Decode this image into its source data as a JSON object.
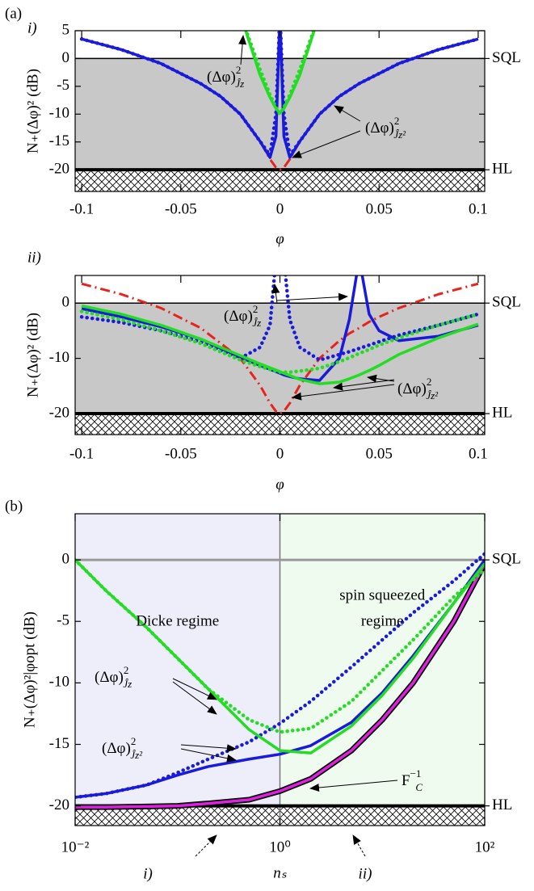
{
  "chart_data": [
    {
      "type": "line",
      "panel_label": "(a)",
      "subpanel_label": "i)",
      "x_label": "φ",
      "y_label": "N₊(Δφ)² (dB)",
      "xlim": [
        -0.1033,
        0.1033
      ],
      "ylim": [
        -23.9,
        5
      ],
      "xticks": [
        -0.1,
        -0.05,
        0,
        0.05,
        0.1
      ],
      "yticks": [
        5,
        0,
        -5,
        -10,
        -15,
        -20
      ],
      "fill_color": "#c8c8c8",
      "reference_lines": [
        {
          "label": "SQL",
          "value": 0,
          "color": "#000000"
        },
        {
          "label": "HL",
          "value": -20,
          "color": "#000000"
        }
      ],
      "x": [
        -0.1,
        -0.08,
        -0.06,
        -0.04,
        -0.03,
        -0.02,
        -0.01,
        -0.005,
        -0.002,
        0,
        0.002,
        0.005,
        0.01,
        0.02,
        0.03,
        0.04,
        0.06,
        0.08,
        0.1
      ],
      "series": [
        {
          "color": "#e8231e",
          "style": "dashdot",
          "values": [
            3.5,
            1.6,
            -0.9,
            -4.5,
            -6.8,
            -10,
            -14.9,
            -18.1,
            -19.6,
            -20,
            -19.6,
            -18.1,
            -14.9,
            -10,
            -6.8,
            -4.5,
            -0.9,
            1.6,
            3.5
          ]
        },
        {
          "color": "#1a1adc",
          "style": "solid",
          "values": [
            3.5,
            1.6,
            -0.9,
            -4.5,
            -6.8,
            -10,
            -14.9,
            -17.8,
            -14,
            8,
            -14,
            -17.8,
            -14.9,
            -10,
            -6.8,
            -4.5,
            -0.9,
            1.6,
            3.5
          ]
        },
        {
          "color": "#1a1adc",
          "style": "dotted",
          "values": [
            3.5,
            1.6,
            -0.9,
            -4.5,
            -6.8,
            -10,
            -14.9,
            -17.4,
            -10,
            8,
            -10,
            -17.4,
            -14.9,
            -10,
            -6.8,
            -4.5,
            -0.9,
            1.6,
            3.5
          ]
        },
        {
          "color": "#22dd22",
          "style": "solid",
          "values": [
            null,
            null,
            null,
            null,
            null,
            8,
            -3,
            -7,
            -9,
            -9.8,
            -9,
            -7,
            -3,
            8,
            null,
            null,
            null,
            null,
            null
          ]
        },
        {
          "color": "#22dd22",
          "style": "dotted",
          "values": [
            null,
            null,
            null,
            null,
            null,
            8,
            -2,
            -6.5,
            -8.8,
            -10,
            -8.8,
            -6.5,
            -2,
            8,
            null,
            null,
            null,
            null,
            null
          ]
        }
      ],
      "annotations": [
        {
          "base": "(Δφ)",
          "sup": "2",
          "sub": "Ĵz"
        },
        {
          "base": "(Δφ)",
          "sup": "2",
          "sub": "Ĵz²"
        }
      ]
    },
    {
      "type": "line",
      "subpanel_label": "ii)",
      "x_label": "φ",
      "y_label": "N₊(Δφ)² (dB)",
      "xlim": [
        -0.1033,
        0.1033
      ],
      "ylim": [
        -23.8,
        5
      ],
      "xticks": [
        -0.1,
        -0.05,
        0,
        0.05,
        0.1
      ],
      "yticks": [
        0,
        -10,
        -20
      ],
      "fill_color": "#c8c8c8",
      "reference_lines": [
        {
          "label": "SQL",
          "value": 0,
          "color": "#000000"
        },
        {
          "label": "HL",
          "value": -20,
          "color": "#000000"
        }
      ],
      "x": [
        -0.1,
        -0.08,
        -0.06,
        -0.04,
        -0.02,
        -0.01,
        -0.005,
        -0.002,
        0,
        0.002,
        0.005,
        0.01,
        0.02,
        0.03,
        0.035,
        0.04,
        0.045,
        0.05,
        0.06,
        0.08,
        0.1
      ],
      "series": [
        {
          "color": "#e8231e",
          "style": "dashdot",
          "values": [
            3.5,
            1.6,
            -0.9,
            -4.5,
            -10,
            -14.9,
            -18.1,
            -19.6,
            -20,
            -19.6,
            -18.1,
            -14.9,
            -10,
            -6.8,
            -5.5,
            -4.5,
            -3.4,
            -2.5,
            -0.9,
            1.6,
            3.5
          ]
        },
        {
          "color": "#1a1adc",
          "style": "solid",
          "values": [
            -1,
            -2.5,
            -4.3,
            -6.5,
            -9.8,
            -11.3,
            -12,
            -12.4,
            -12.7,
            -13,
            -13.3,
            -13.7,
            -14,
            -10,
            -3,
            8,
            -2,
            -5,
            -6.8,
            -6,
            -4
          ]
        },
        {
          "color": "#1a1adc",
          "style": "dotted",
          "values": [
            -2.5,
            -3.5,
            -5,
            -7,
            -10,
            -8,
            -4,
            8,
            null,
            8,
            -3,
            -8,
            -10.3,
            -9.3,
            -8.8,
            -8.2,
            -7.6,
            -7,
            -5.8,
            -4,
            -2
          ]
        },
        {
          "color": "#22dd22",
          "style": "solid",
          "values": [
            -0.5,
            -2,
            -4,
            -6.5,
            -9.5,
            -11,
            -11.7,
            -12.1,
            -12.4,
            -12.7,
            -13.1,
            -13.8,
            -14.6,
            -14.3,
            -13.7,
            -13,
            -12.2,
            -11.3,
            -9.3,
            -6.3,
            -3.8
          ]
        },
        {
          "color": "#22dd22",
          "style": "dotted",
          "values": [
            -1.5,
            -3,
            -5,
            -7.3,
            -10.3,
            -11.5,
            -12,
            -12.3,
            -12.5,
            -12.5,
            -12.5,
            -12.3,
            -11.8,
            -10.6,
            -9.9,
            -9.1,
            -8.4,
            -7.6,
            -6.3,
            -4,
            -2
          ]
        }
      ],
      "annotations": [
        {
          "base": "(Δφ)",
          "sup": "2",
          "sub": "Ĵz"
        },
        {
          "base": "(Δφ)",
          "sup": "2",
          "sub": "Ĵz²"
        }
      ]
    },
    {
      "type": "line",
      "panel_label": "(b)",
      "x_label": "nₛ",
      "y_label": "N₊(Δφ)²|φopt (dB)",
      "log_x": true,
      "xlim": [
        0.01,
        100
      ],
      "ylim": [
        -21.6,
        3.75
      ],
      "xticks": [
        {
          "value": 0.01,
          "label": "10⁻²"
        },
        {
          "value": 1,
          "label": "10⁰"
        },
        {
          "value": 100,
          "label": "10²"
        }
      ],
      "yticks": [
        0,
        -5,
        -10,
        -15,
        -20
      ],
      "regions": [
        {
          "label": [
            "Dicke regime"
          ],
          "color": "#eeeefb",
          "xlim": [
            0.01,
            1
          ]
        },
        {
          "label": [
            "spin squeezed",
            "regime"
          ],
          "color": "#f0fbf0",
          "xlim": [
            1,
            100
          ]
        }
      ],
      "reference_lines": [
        {
          "label": "SQL",
          "value": 0,
          "color": "#999999"
        },
        {
          "label": "HL",
          "value": -20,
          "color": "#000000"
        }
      ],
      "x": [
        0.01,
        0.02,
        0.05,
        0.1,
        0.2,
        0.5,
        1,
        2,
        5,
        10,
        20,
        50,
        100
      ],
      "series": [
        {
          "color": "#e020e0",
          "outline": "#000000",
          "style": "solid",
          "values": [
            -20.1,
            -20.1,
            -20.05,
            -20,
            -19.8,
            -19.5,
            -18.8,
            -17.8,
            -15.5,
            -13,
            -10,
            -5,
            -0.3
          ]
        },
        {
          "color": "#1a1adc",
          "style": "solid",
          "values": [
            -19.3,
            -19,
            -18.3,
            -17.5,
            -16.8,
            -16.2,
            -15.8,
            -15.1,
            -13.2,
            -10.8,
            -7.8,
            -3.5,
            0
          ]
        },
        {
          "color": "#1a1adc",
          "style": "dotted",
          "values": [
            -19.3,
            -19,
            -18.3,
            -17.3,
            -16.2,
            -14.8,
            -13.3,
            -11.5,
            -8.7,
            -6.5,
            -4.3,
            -1.7,
            0.5
          ]
        },
        {
          "color": "#22dd22",
          "style": "solid",
          "values": [
            0,
            -2.5,
            -5.5,
            -8,
            -10.5,
            -13.8,
            -15.5,
            -15.7,
            -13.5,
            -11,
            -8,
            -3.5,
            -0.3
          ]
        },
        {
          "color": "#22dd22",
          "style": "dotted",
          "values": [
            0,
            -2.5,
            -5.5,
            -8,
            -10.5,
            -13,
            -14,
            -13.7,
            -11.5,
            -9,
            -6.5,
            -3,
            -0.8
          ]
        }
      ],
      "annotations": [
        {
          "base": "(Δφ)",
          "sup": "2",
          "sub": "Ĵz"
        },
        {
          "base": "(Δφ)",
          "sup": "2",
          "sub": "Ĵz²"
        },
        {
          "base": "F",
          "sup": "−1",
          "sub": "C"
        }
      ],
      "bottom_markers": [
        "i)",
        "ii)"
      ]
    }
  ]
}
